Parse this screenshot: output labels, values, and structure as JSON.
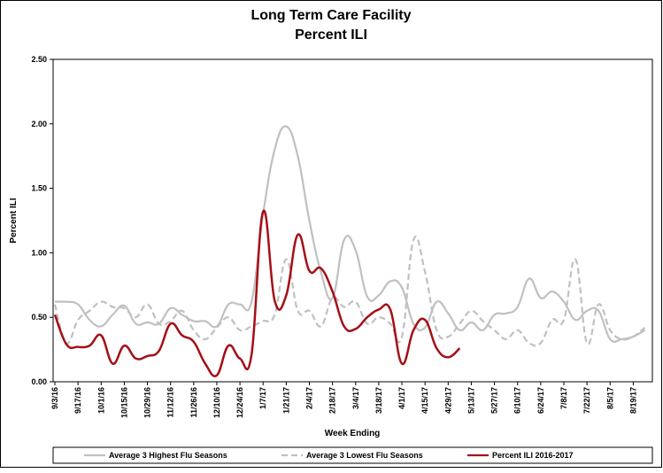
{
  "chart_data": {
    "type": "line",
    "title": "Long Term Care Facility",
    "subtitle": "Percent ILI",
    "x_label": "Week Ending",
    "y_label": "Percent ILI",
    "categories": [
      "9/3/16",
      null,
      "9/17/16",
      null,
      "10/1/16",
      null,
      "10/15/16",
      null,
      "10/29/16",
      null,
      "11/12/16",
      null,
      "11/26/16",
      null,
      "12/10/16",
      null,
      "12/24/16",
      null,
      "1/7/17",
      null,
      "1/21/17",
      null,
      "2/4/17",
      null,
      "2/18/17",
      null,
      "3/4/17",
      null,
      "3/18/17",
      null,
      "4/1/17",
      null,
      "4/15/17",
      null,
      "4/29/17",
      null,
      "5/13/17",
      null,
      "5/27/17",
      null,
      "6/10/17",
      null,
      "6/24/17",
      null,
      "7/8/17",
      null,
      "7/22/17",
      null,
      "8/5/17",
      null,
      "8/19/17",
      null
    ],
    "series": [
      {
        "name": "Average 3 Highest Flu Seasons",
        "color": "#c0c0c0",
        "dashed": false,
        "values": [
          0.62,
          0.62,
          0.6,
          0.48,
          0.43,
          0.52,
          0.59,
          0.45,
          0.46,
          0.45,
          0.57,
          0.52,
          0.47,
          0.47,
          0.43,
          0.6,
          0.6,
          0.62,
          1.3,
          1.8,
          1.98,
          1.75,
          1.25,
          0.85,
          0.65,
          1.1,
          1.02,
          0.66,
          0.67,
          0.78,
          0.73,
          0.45,
          0.42,
          0.62,
          0.53,
          0.4,
          0.46,
          0.4,
          0.52,
          0.53,
          0.58,
          0.8,
          0.65,
          0.7,
          0.62,
          0.48,
          0.55,
          0.55,
          0.33,
          0.33,
          0.35,
          0.4
        ]
      },
      {
        "name": "Average 3 Lowest Flu Seasons",
        "color": "#c0c0c0",
        "dashed": true,
        "values": [
          0.6,
          0.3,
          0.48,
          0.55,
          0.62,
          0.58,
          0.57,
          0.5,
          0.6,
          0.45,
          0.47,
          0.55,
          0.4,
          0.33,
          0.42,
          0.5,
          0.4,
          0.43,
          0.47,
          0.52,
          0.95,
          0.55,
          0.55,
          0.43,
          0.65,
          0.58,
          0.62,
          0.45,
          0.5,
          0.45,
          0.35,
          1.1,
          0.85,
          0.4,
          0.35,
          0.45,
          0.55,
          0.47,
          0.4,
          0.33,
          0.4,
          0.3,
          0.3,
          0.48,
          0.48,
          0.95,
          0.3,
          0.6,
          0.4,
          0.33,
          0.35,
          0.42
        ]
      },
      {
        "name": "Percent ILI 2016-2017",
        "color": "#a50f15",
        "dashed": false,
        "values": [
          0.52,
          0.29,
          0.27,
          0.28,
          0.36,
          0.14,
          0.28,
          0.18,
          0.2,
          0.24,
          0.45,
          0.36,
          0.31,
          0.14,
          0.05,
          0.28,
          0.18,
          0.21,
          1.32,
          0.63,
          0.67,
          1.14,
          0.86,
          0.88,
          0.7,
          0.43,
          0.41,
          0.5,
          0.56,
          0.56,
          0.14,
          0.4,
          0.48,
          0.26,
          0.19,
          0.26,
          null,
          null,
          null,
          null,
          null,
          null,
          null,
          null,
          null,
          null,
          null,
          null,
          null,
          null,
          null,
          null
        ]
      }
    ],
    "ylim": [
      0,
      2.5
    ],
    "yticks": [
      {
        "value": 0,
        "label": "0.00"
      },
      {
        "value": 0.5,
        "label": "0.50"
      },
      {
        "value": 1,
        "label": "1.00"
      },
      {
        "value": 1.5,
        "label": "1.50"
      },
      {
        "value": 2,
        "label": "2.00"
      },
      {
        "value": 2.5,
        "label": "2.50"
      }
    ],
    "grid": false,
    "legend": "bottom"
  }
}
